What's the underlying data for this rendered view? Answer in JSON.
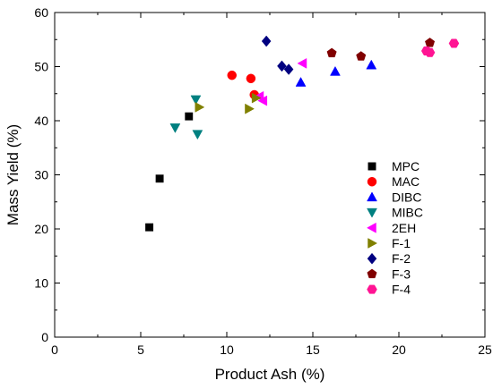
{
  "chart_data": {
    "type": "scatter",
    "xlabel": "Product Ash (%)",
    "ylabel": "Mass Yield (%)",
    "xlim": [
      0,
      25
    ],
    "ylim": [
      0,
      60
    ],
    "xticks": [
      0,
      5,
      10,
      15,
      20,
      25
    ],
    "yticks": [
      0,
      10,
      20,
      30,
      40,
      50,
      60
    ],
    "grid": false,
    "legend_position": "right-center",
    "series": [
      {
        "name": "MPC",
        "marker": "square",
        "color": "#000000",
        "x": [
          5.5,
          6.1,
          7.8
        ],
        "y": [
          20.3,
          29.3,
          40.8
        ]
      },
      {
        "name": "MAC",
        "marker": "circle",
        "color": "#ff0000",
        "x": [
          10.3,
          11.4,
          11.6
        ],
        "y": [
          48.4,
          47.8,
          44.8
        ]
      },
      {
        "name": "DIBC",
        "marker": "triangle-up",
        "color": "#0000ff",
        "x": [
          14.3,
          16.3,
          18.4
        ],
        "y": [
          47.1,
          49.1,
          50.3
        ]
      },
      {
        "name": "MIBC",
        "marker": "triangle-down",
        "color": "#008080",
        "x": [
          7.0,
          8.2,
          8.3
        ],
        "y": [
          38.7,
          43.9,
          37.5
        ]
      },
      {
        "name": "2EH",
        "marker": "triangle-left",
        "color": "#ff00ff",
        "x": [
          11.9,
          12.1,
          14.4
        ],
        "y": [
          44.5,
          43.7,
          50.6
        ]
      },
      {
        "name": "F-1",
        "marker": "triangle-right",
        "color": "#808000",
        "x": [
          8.4,
          11.3,
          11.7
        ],
        "y": [
          42.5,
          42.2,
          44.2
        ]
      },
      {
        "name": "F-2",
        "marker": "diamond",
        "color": "#000080",
        "x": [
          12.3,
          13.2,
          13.6
        ],
        "y": [
          54.7,
          50.1,
          49.5
        ]
      },
      {
        "name": "F-3",
        "marker": "pentagon",
        "color": "#800000",
        "x": [
          16.1,
          17.8,
          21.8
        ],
        "y": [
          52.5,
          51.9,
          54.4
        ]
      },
      {
        "name": "F-4",
        "marker": "hexagon",
        "color": "#ff1493",
        "x": [
          21.6,
          21.8,
          23.2
        ],
        "y": [
          52.9,
          52.6,
          54.3
        ]
      }
    ]
  }
}
